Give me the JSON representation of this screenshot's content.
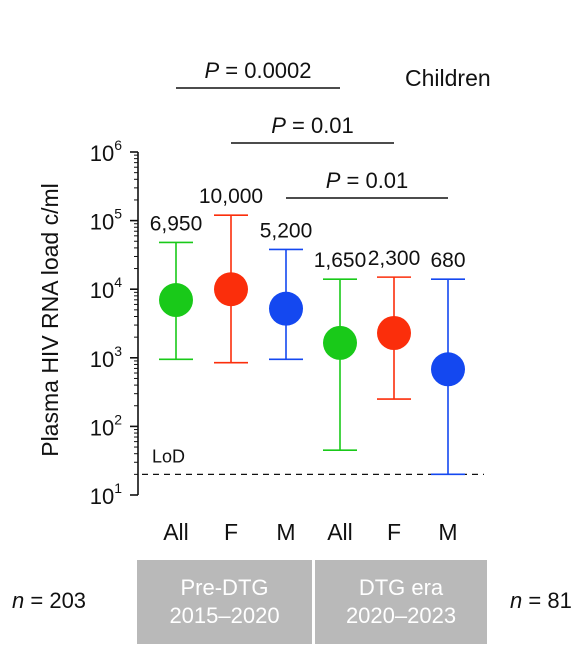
{
  "chart_data": {
    "type": "scatter",
    "title": "Children",
    "ylabel": "Plasma HIV RNA load c/ml",
    "yscale": "log",
    "ylim": [
      10,
      1000000
    ],
    "yticks": [
      {
        "value": 10,
        "base": "10",
        "exp": "1"
      },
      {
        "value": 100,
        "base": "10",
        "exp": "2"
      },
      {
        "value": 1000,
        "base": "10",
        "exp": "3"
      },
      {
        "value": 10000,
        "base": "10",
        "exp": "4"
      },
      {
        "value": 100000,
        "base": "10",
        "exp": "5"
      },
      {
        "value": 1000000,
        "base": "10",
        "exp": "6"
      }
    ],
    "categories": [
      "All",
      "F",
      "M",
      "All",
      "F",
      "M"
    ],
    "points": [
      {
        "label": "6,950",
        "value": 6950,
        "lower": 950,
        "upper": 48000,
        "color": "#19c919"
      },
      {
        "label": "10,000",
        "value": 10000,
        "lower": 850,
        "upper": 120000,
        "color": "#fb2e0b"
      },
      {
        "label": "5,200",
        "value": 5200,
        "lower": 950,
        "upper": 38000,
        "color": "#1448f0"
      },
      {
        "label": "1,650",
        "value": 1650,
        "lower": 45,
        "upper": 14000,
        "color": "#19c919"
      },
      {
        "label": "2,300",
        "value": 2300,
        "lower": 250,
        "upper": 15000,
        "color": "#fb2e0b"
      },
      {
        "label": "680",
        "value": 680,
        "lower": 20,
        "upper": 14000,
        "color": "#1448f0"
      }
    ],
    "lod": {
      "label": "LoD",
      "value": 20
    },
    "comparisons": [
      {
        "label": "0.0002",
        "from": 0,
        "to": 3
      },
      {
        "label": "0.01",
        "from": 1,
        "to": 4
      },
      {
        "label": "0.01",
        "from": 2,
        "to": 5
      }
    ],
    "p_prefix": "P",
    "p_equals": " = ",
    "groups": [
      {
        "line1": "Pre-DTG",
        "line2": "2015–2020",
        "n": "203"
      },
      {
        "line1": "DTG era",
        "line2": "2020–2023",
        "n": "81"
      }
    ],
    "n_prefix": "n",
    "n_equals": " = "
  }
}
